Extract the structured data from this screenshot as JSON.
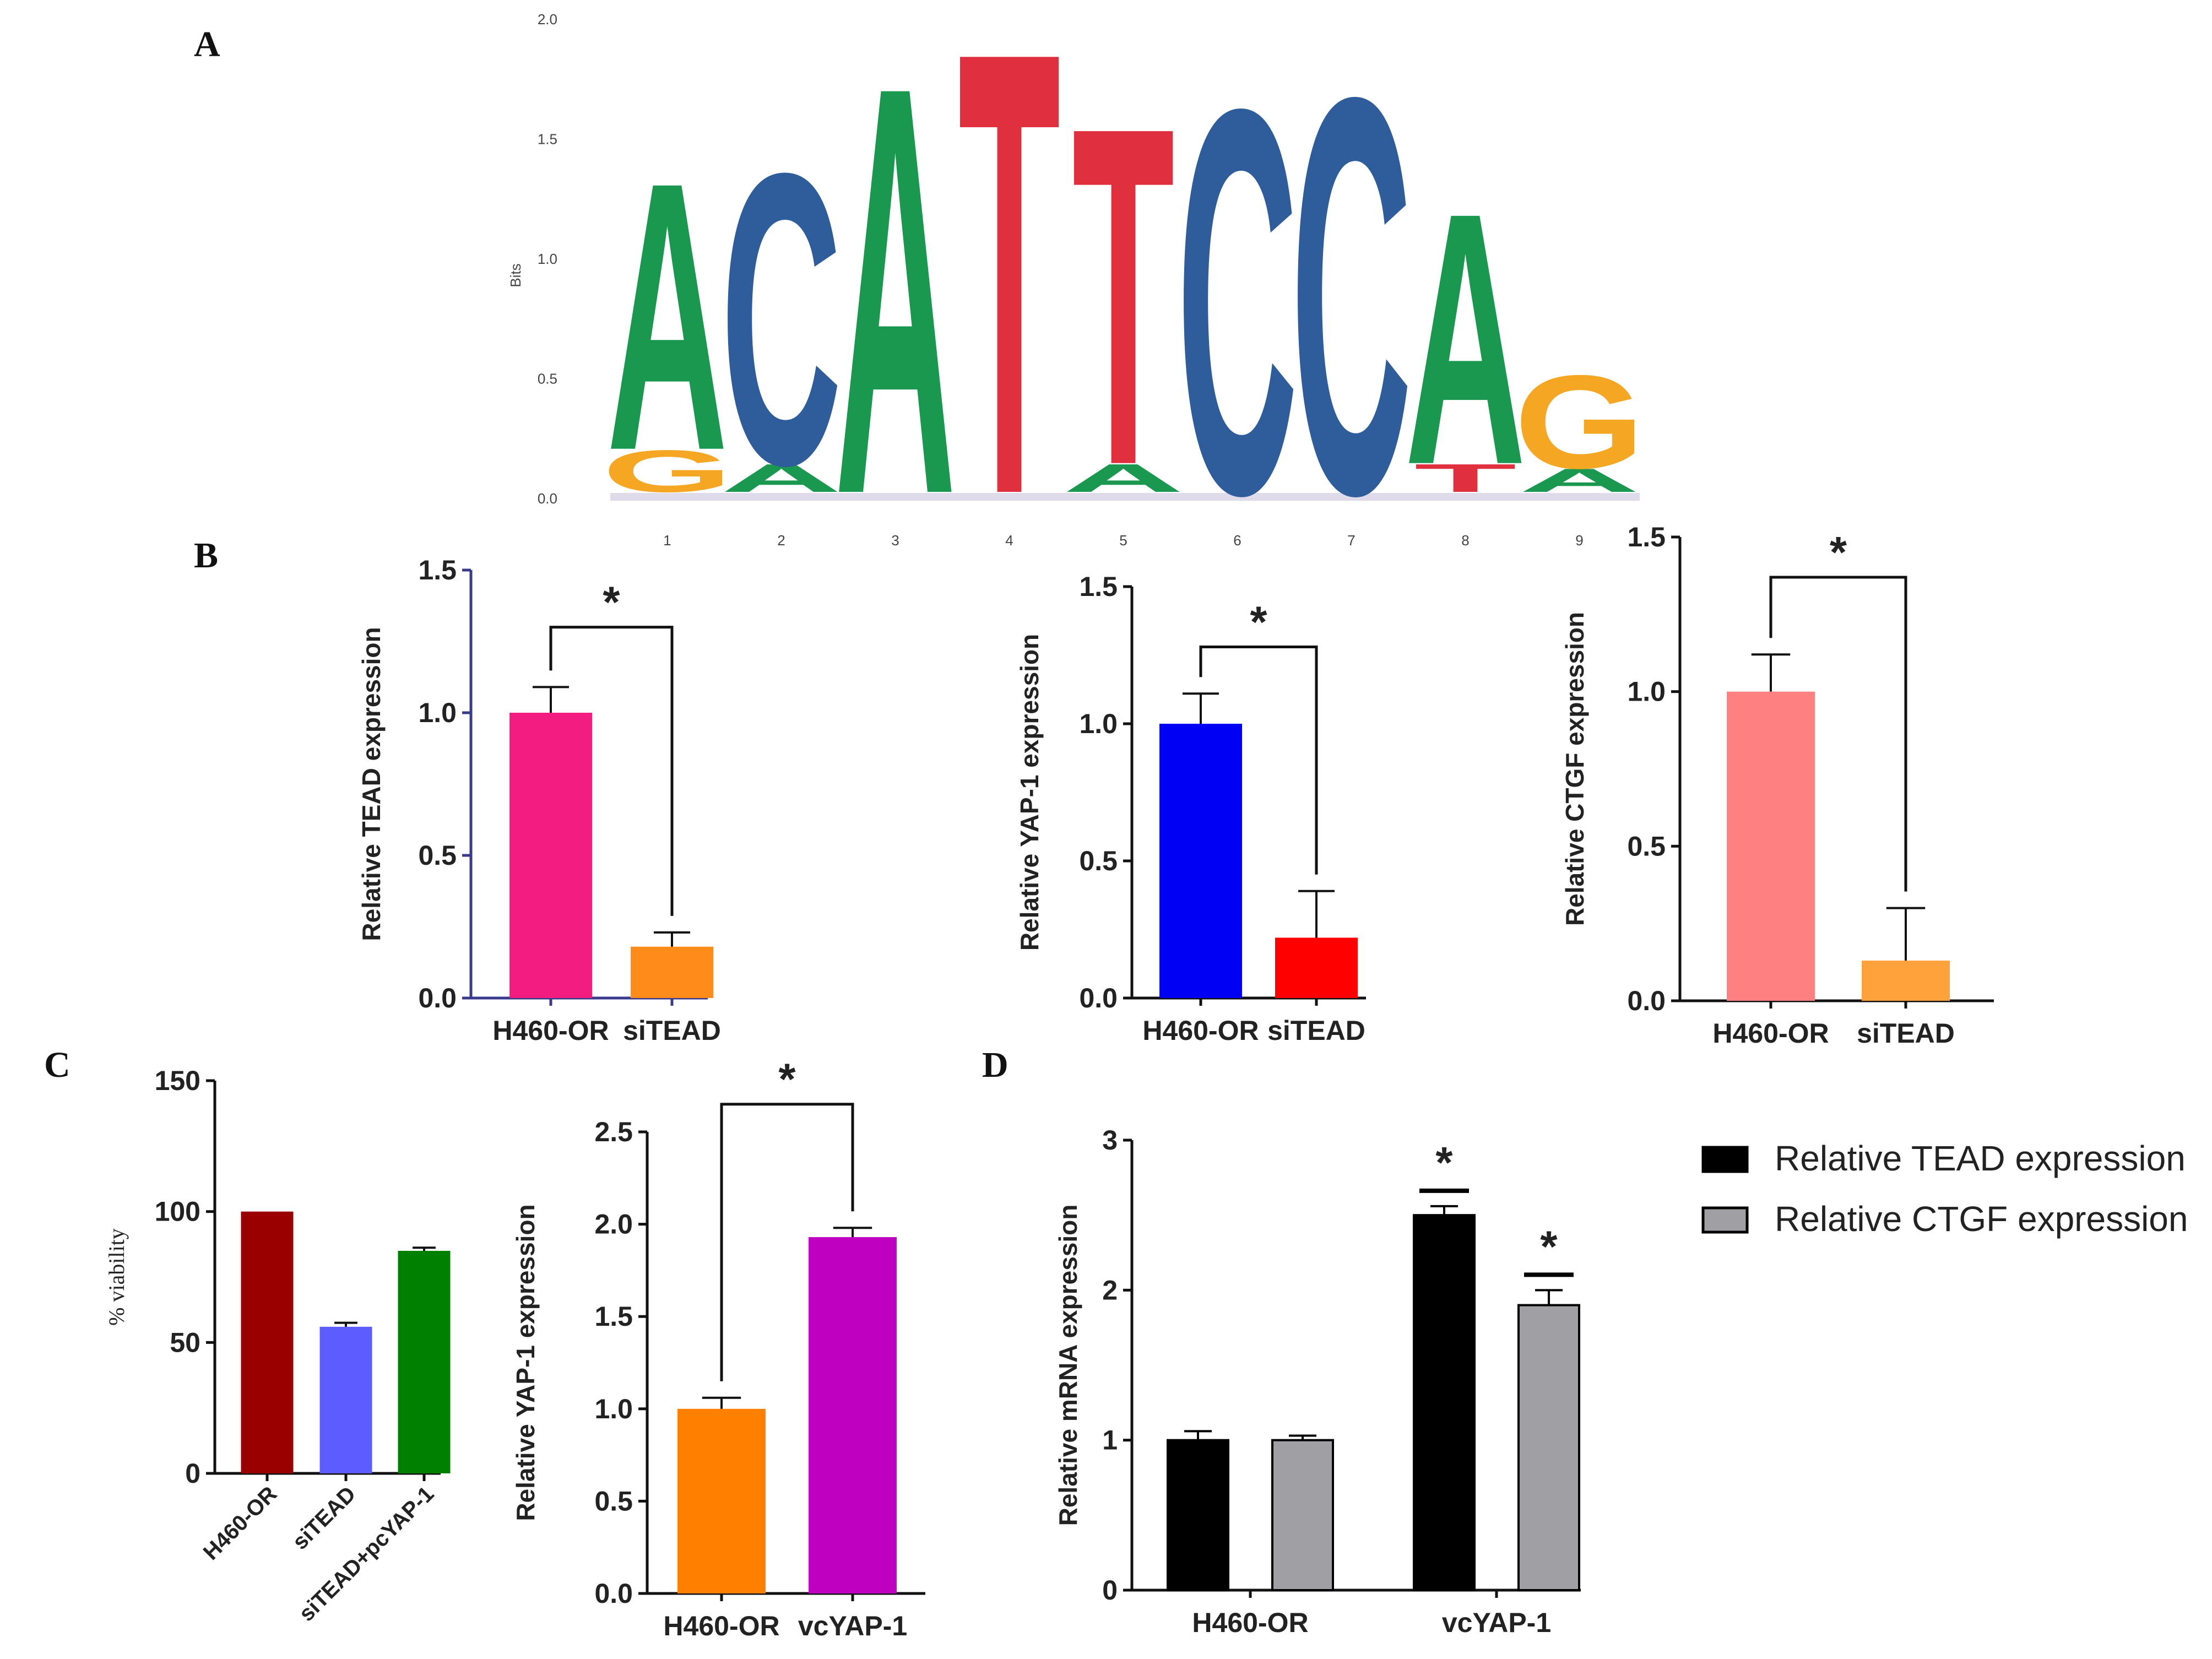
{
  "figure": {
    "panel_labels": [
      "A",
      "B",
      "C",
      "D"
    ]
  },
  "chart_data": [
    {
      "id": "A",
      "type": "sequence-logo",
      "ylabel": "Bits",
      "ylim": [
        0,
        2.0
      ],
      "yticks": [
        0.0,
        0.5,
        1.0,
        1.5,
        2.0
      ],
      "ytick_labels": [
        "0.0",
        "0.5",
        "1.0",
        "1.5",
        "2.0"
      ],
      "positions": [
        "1",
        "2",
        "3",
        "4",
        "5",
        "6",
        "7",
        "8",
        "9"
      ],
      "letters": [
        {
          "position": "1",
          "stack": [
            {
              "letter": "G",
              "bits": 0.18
            },
            {
              "letter": "A",
              "bits": 1.15
            }
          ]
        },
        {
          "position": "2",
          "stack": [
            {
              "letter": "A",
              "bits": 0.12
            },
            {
              "letter": "C",
              "bits": 1.25
            }
          ]
        },
        {
          "position": "3",
          "stack": [
            {
              "letter": "A",
              "bits": 1.75
            }
          ]
        },
        {
          "position": "4",
          "stack": [
            {
              "letter": "T",
              "bits": 1.9
            }
          ]
        },
        {
          "position": "5",
          "stack": [
            {
              "letter": "A",
              "bits": 0.12
            },
            {
              "letter": "T",
              "bits": 1.45
            }
          ]
        },
        {
          "position": "6",
          "stack": [
            {
              "letter": "C",
              "bits": 1.65
            }
          ]
        },
        {
          "position": "7",
          "stack": [
            {
              "letter": "C",
              "bits": 1.7
            }
          ]
        },
        {
          "position": "8",
          "stack": [
            {
              "letter": "T",
              "bits": 0.12
            },
            {
              "letter": "A",
              "bits": 1.08
            }
          ]
        },
        {
          "position": "9",
          "stack": [
            {
              "letter": "A",
              "bits": 0.1
            },
            {
              "letter": "G",
              "bits": 0.4
            }
          ]
        }
      ],
      "letter_colors": {
        "A": "#1a9850",
        "C": "#2f5d9b",
        "G": "#f5a623",
        "T": "#e0303e"
      }
    },
    {
      "id": "B1",
      "type": "bar",
      "categories": [
        "H460-OR",
        "siTEAD"
      ],
      "values": [
        1.0,
        0.18
      ],
      "errors": [
        0.09,
        0.05
      ],
      "colors": [
        "#f21d7e",
        "#ff8c1a"
      ],
      "ylabel": "Relative TEAD expression",
      "ylim": [
        0.0,
        1.5
      ],
      "yticks": [
        0.0,
        0.5,
        1.0,
        1.5
      ],
      "ytick_labels": [
        "0.0",
        "0.5",
        "1.0",
        "1.5"
      ],
      "axis_color": "#3a3a8c",
      "significance": "*"
    },
    {
      "id": "B2",
      "type": "bar",
      "categories": [
        "H460-OR",
        "siTEAD"
      ],
      "values": [
        1.0,
        0.22
      ],
      "errors": [
        0.11,
        0.17
      ],
      "colors": [
        "#0000f5",
        "#ff0000"
      ],
      "ylabel": "Relative YAP-1 expression",
      "ylim": [
        0.0,
        1.5
      ],
      "yticks": [
        0.0,
        0.5,
        1.0,
        1.5
      ],
      "ytick_labels": [
        "0.0",
        "0.5",
        "1.0",
        "1.5"
      ],
      "axis_color": "#111111",
      "significance": "*"
    },
    {
      "id": "B3",
      "type": "bar",
      "categories": [
        "H460-OR",
        "siTEAD"
      ],
      "values": [
        1.0,
        0.13
      ],
      "errors": [
        0.12,
        0.17
      ],
      "colors": [
        "#ff8080",
        "#ffa23a"
      ],
      "ylabel": "Relative CTGF expression",
      "ylim": [
        0.0,
        1.5
      ],
      "yticks": [
        0.0,
        0.5,
        1.0,
        1.5
      ],
      "ytick_labels": [
        "0.0",
        "0.5",
        "1.0",
        "1.5"
      ],
      "axis_color": "#111111",
      "significance": "*"
    },
    {
      "id": "C1",
      "type": "bar",
      "categories": [
        "H460-OR",
        "siTEAD",
        "siTEAD+pcYAP-1"
      ],
      "values": [
        100,
        56,
        85
      ],
      "errors": [
        0,
        1.5,
        1.2
      ],
      "colors": [
        "#990000",
        "#5c5cff",
        "#008000"
      ],
      "ylabel": "% viability",
      "ylim": [
        0,
        150
      ],
      "yticks": [
        0,
        50,
        100,
        150
      ],
      "ytick_labels": [
        "0",
        "50",
        "100",
        "150"
      ],
      "axis_color": "#111111"
    },
    {
      "id": "C2",
      "type": "bar",
      "categories": [
        "H460-OR",
        "vcYAP-1"
      ],
      "values": [
        1.0,
        1.93
      ],
      "errors": [
        0.06,
        0.05
      ],
      "colors": [
        "#ff7f00",
        "#c000c0"
      ],
      "ylabel": "Relative YAP-1 expression",
      "ylim": [
        0.0,
        2.5
      ],
      "yticks": [
        0.0,
        0.5,
        1.0,
        1.5,
        2.0,
        2.5
      ],
      "ytick_labels": [
        "0.0",
        "0.5",
        "1.0",
        "1.5",
        "2.0",
        "2.5"
      ],
      "axis_color": "#111111",
      "significance": "*"
    },
    {
      "id": "D",
      "type": "bar",
      "categories": [
        "H460-OR",
        "vcYAP-1"
      ],
      "series": [
        {
          "name": "Relative TEAD expression",
          "values": [
            1.0,
            2.5
          ],
          "errors": [
            0.06,
            0.06
          ],
          "color": "#000000"
        },
        {
          "name": "Relative CTGF expression",
          "values": [
            1.0,
            1.9
          ],
          "errors": [
            0.03,
            0.1
          ],
          "color": "#a0a0a4"
        }
      ],
      "ylabel": "Relative mRNA expression",
      "ylim": [
        0,
        3
      ],
      "yticks": [
        0,
        1,
        2,
        3
      ],
      "ytick_labels": [
        "0",
        "1",
        "2",
        "3"
      ],
      "axis_color": "#111111",
      "significance": "*",
      "legend_position": "top-right"
    }
  ]
}
